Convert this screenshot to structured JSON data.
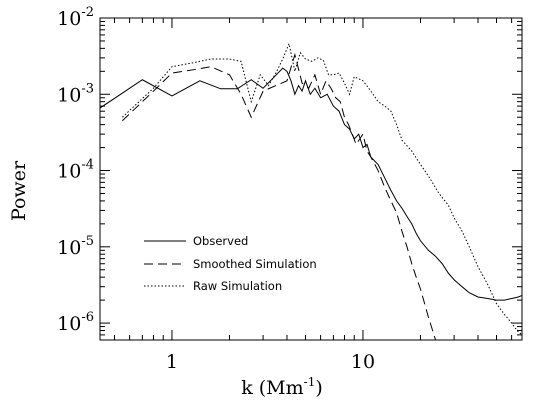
{
  "chart_data": {
    "type": "line",
    "title": "",
    "xlabel": "k (Mm",
    "xlabel_sup": "-1",
    "xlabel_close": ")",
    "ylabel": "Power",
    "xscale": "log",
    "yscale": "log",
    "xlim": [
      0.42,
      68
    ],
    "ylim": [
      6e-07,
      0.01
    ],
    "grid": false,
    "legend_placement": "bottom-left",
    "x_ticks": [
      {
        "value": 1,
        "label": "1"
      },
      {
        "value": 10,
        "label": "10"
      }
    ],
    "y_ticks": [
      {
        "value": 1e-06,
        "base": "10",
        "exp": "-6"
      },
      {
        "value": 1e-05,
        "base": "10",
        "exp": "-5"
      },
      {
        "value": 0.0001,
        "base": "10",
        "exp": "-4"
      },
      {
        "value": 0.001,
        "base": "10",
        "exp": "-3"
      },
      {
        "value": 0.01,
        "base": "10",
        "exp": "-2"
      }
    ],
    "series": [
      {
        "name": "Observed",
        "dash": "solid",
        "x": [
          0.42,
          0.7,
          1.0,
          1.4,
          1.8,
          2.2,
          2.6,
          3.0,
          3.4,
          3.8,
          4.0,
          4.2,
          4.4,
          4.6,
          4.8,
          5.0,
          5.3,
          5.6,
          6.0,
          6.5,
          7.0,
          7.5,
          8.0,
          8.5,
          9.0,
          9.5,
          10.0,
          10.5,
          11.0,
          12.0,
          13.0,
          14.0,
          15.0,
          16.0,
          17.0,
          18.0,
          19.0,
          20.0,
          22.0,
          24.0,
          26.0,
          28.0,
          30.0,
          33.0,
          36.0,
          40.0,
          45.0,
          50.0,
          55.0,
          60.0,
          65.0,
          68.0
        ],
        "y": [
          0.00066,
          0.00155,
          0.00095,
          0.0015,
          0.00118,
          0.00118,
          0.00155,
          0.0012,
          0.00165,
          0.0022,
          0.002,
          0.0015,
          0.001,
          0.0013,
          0.0011,
          0.0015,
          0.001,
          0.0012,
          0.0009,
          0.001,
          0.0007,
          0.0006,
          0.0004,
          0.00035,
          0.00026,
          0.0003,
          0.0002,
          0.00022,
          0.00015,
          0.00012,
          8e-05,
          5.5e-05,
          4e-05,
          3.2e-05,
          2.5e-05,
          2e-05,
          1.5e-05,
          1.2e-05,
          9e-06,
          7.5e-06,
          6e-06,
          4.5e-06,
          3.7e-06,
          3e-06,
          2.5e-06,
          2.2e-06,
          2.1e-06,
          2e-06,
          2e-06,
          2.1e-06,
          2.2e-06,
          2.3e-06
        ]
      },
      {
        "name": "Smoothed Simulation",
        "dash": "dashed",
        "x": [
          0.55,
          0.8,
          1.0,
          1.3,
          1.6,
          2.0,
          2.3,
          2.6,
          3.0,
          3.5,
          4.0,
          4.4,
          4.8,
          5.2,
          5.6,
          6.0,
          6.4,
          6.8,
          7.2,
          7.6,
          8.0,
          8.4,
          8.8,
          9.2,
          10.0,
          10.5,
          11.0,
          12.0,
          13.0,
          14.0,
          15.0,
          16.0,
          17.0,
          18.0,
          19.0,
          20.0,
          22.0,
          24.0
        ],
        "y": [
          0.00045,
          0.0011,
          0.0019,
          0.0021,
          0.0023,
          0.0018,
          0.001,
          0.0005,
          0.0011,
          0.0013,
          0.0015,
          0.0033,
          0.0014,
          0.0012,
          0.0018,
          0.001,
          0.0015,
          0.0012,
          0.0009,
          0.0008,
          0.0005,
          0.0004,
          0.0003,
          0.00022,
          0.0003,
          0.00018,
          0.00015,
          0.0001,
          6e-05,
          4e-05,
          2.8e-05,
          1.6e-05,
          1e-05,
          6e-06,
          4e-06,
          2.8e-06,
          1.2e-06,
          6e-07
        ]
      },
      {
        "name": "Raw Simulation",
        "dash": "dotted",
        "x": [
          0.55,
          0.8,
          1.0,
          1.3,
          1.6,
          2.0,
          2.3,
          2.6,
          2.9,
          3.2,
          3.5,
          3.8,
          4.1,
          4.4,
          4.7,
          5.0,
          5.4,
          5.8,
          6.2,
          6.6,
          7.0,
          7.5,
          8.0,
          8.5,
          9.0,
          10.0,
          11.0,
          12.0,
          13.0,
          14.0,
          15.0,
          16.0,
          18.0,
          20.0,
          22.0,
          25.0,
          28.0,
          30.0,
          33.0,
          36.0,
          40.0,
          45.0,
          50.0,
          55.0,
          60.0,
          64.0,
          68.0
        ],
        "y": [
          0.0005,
          0.0012,
          0.0023,
          0.0026,
          0.0029,
          0.0029,
          0.0027,
          0.0008,
          0.0018,
          0.0013,
          0.0019,
          0.0029,
          0.0046,
          0.002,
          0.0035,
          0.0029,
          0.0027,
          0.003,
          0.0028,
          0.0018,
          0.0018,
          0.0019,
          0.0014,
          0.001,
          0.0017,
          0.0015,
          0.0011,
          0.0008,
          0.0007,
          0.0006,
          0.0004,
          0.00025,
          0.00018,
          0.00012,
          8.5e-05,
          5e-05,
          3.5e-05,
          2.4e-05,
          1.6e-05,
          1e-05,
          5.5e-06,
          3.2e-06,
          1.8e-06,
          1.3e-06,
          1e-06,
          8e-07,
          7e-07
        ]
      }
    ]
  }
}
